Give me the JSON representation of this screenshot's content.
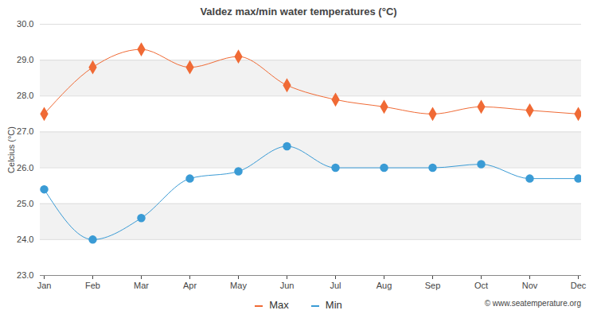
{
  "chart_data": {
    "type": "line",
    "title": "Valdez max/min water temperatures (°C)",
    "y_label": "Celcius (°C)",
    "caption": "© www.seatemperature.org",
    "categories": [
      "Jan",
      "Feb",
      "Mar",
      "Apr",
      "May",
      "Jun",
      "Jul",
      "Aug",
      "Sep",
      "Oct",
      "Nov",
      "Dec"
    ],
    "series": [
      {
        "name": "Max",
        "color": "#f06a35",
        "marker": "diamond",
        "values": [
          27.5,
          28.8,
          29.3,
          28.8,
          29.1,
          28.3,
          27.9,
          27.7,
          27.5,
          27.7,
          27.6,
          27.5
        ]
      },
      {
        "name": "Min",
        "color": "#3a9bd5",
        "marker": "circle",
        "values": [
          25.4,
          24.0,
          24.6,
          25.7,
          25.9,
          26.6,
          26.0,
          26.0,
          26.0,
          26.1,
          25.7,
          25.7
        ]
      }
    ],
    "ylim": [
      23,
      30
    ],
    "yticks": [
      23,
      24,
      25,
      26,
      27,
      28,
      29,
      30
    ],
    "grid": true,
    "legend": "bottom"
  }
}
